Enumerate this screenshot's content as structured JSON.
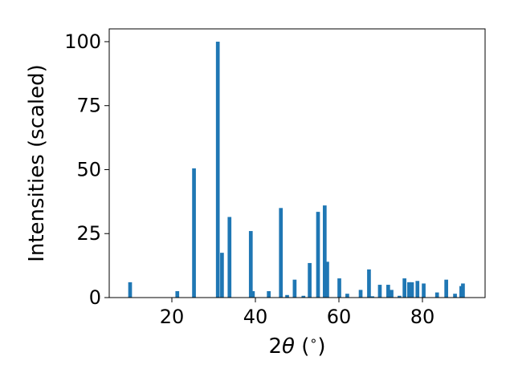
{
  "chart_data": {
    "type": "bar",
    "xlabel_parts": {
      "prefix": "2",
      "symbol": "θ",
      "suffix": " (",
      "unit_symbol": "∘",
      "close": ")"
    },
    "ylabel": "Intensities (scaled)",
    "xlim": [
      5,
      95
    ],
    "ylim": [
      0,
      105
    ],
    "xticks": [
      20,
      40,
      60,
      80
    ],
    "yticks": [
      0,
      25,
      50,
      75,
      100
    ],
    "bar_color": "#1f77b4",
    "bar_width": 0.9,
    "grid": false,
    "x": [
      10.0,
      21.3,
      25.3,
      31.0,
      32.0,
      33.8,
      38.9,
      39.4,
      43.2,
      46.1,
      47.6,
      49.4,
      51.5,
      53.0,
      55.0,
      56.6,
      57.2,
      60.1,
      62.0,
      65.2,
      67.2,
      68.0,
      69.8,
      71.8,
      72.6,
      74.5,
      75.7,
      76.8,
      77.5,
      78.8,
      80.3,
      83.5,
      85.7,
      87.8,
      89.3,
      89.7
    ],
    "values": [
      6.0,
      2.5,
      50.5,
      100.0,
      17.5,
      31.5,
      26.0,
      2.5,
      2.5,
      35.0,
      1.0,
      7.0,
      0.7,
      13.5,
      33.5,
      36.0,
      14.0,
      7.5,
      1.5,
      3.0,
      11.0,
      0.5,
      5.0,
      5.0,
      3.0,
      0.7,
      7.5,
      6.0,
      6.0,
      6.5,
      5.5,
      2.0,
      7.0,
      1.5,
      4.5,
      5.5
    ]
  }
}
